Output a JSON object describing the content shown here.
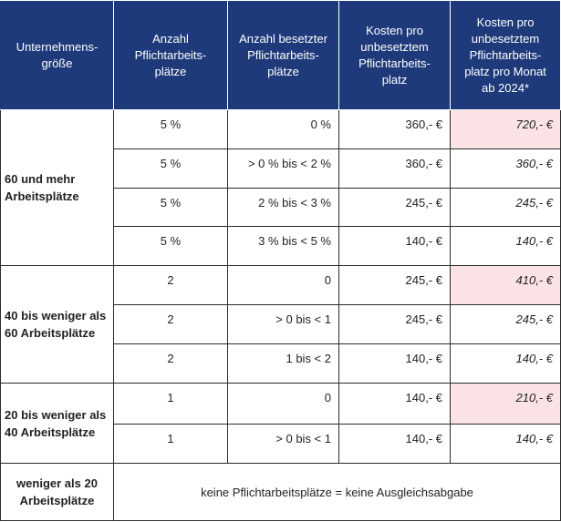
{
  "headers": {
    "size": [
      "Unternehmens-",
      "größe"
    ],
    "quota": [
      "Anzahl",
      "Pflichtarbeits-",
      "plätze"
    ],
    "filled": [
      "Anzahl besetzter",
      "Pflichtarbeits-",
      "plätze"
    ],
    "cost": [
      "Kosten pro",
      "unbesetztem",
      "Pflichtarbeits-",
      "platz"
    ],
    "cost_new": [
      "Kosten pro",
      "unbesetztem",
      "Pflichtarbeits-",
      "platz pro Monat",
      "ab 2024*"
    ]
  },
  "groups": [
    {
      "label": [
        "60 und mehr",
        "Arbeitsplätze"
      ],
      "rows": [
        {
          "quota": "5 %",
          "filled": "0 %",
          "cost": "360,- €",
          "cost_new": "720,- €",
          "highlight": true
        },
        {
          "quota": "5 %",
          "filled": "> 0 % bis < 2 %",
          "cost": "360,- €",
          "cost_new": "360,- €",
          "highlight": false
        },
        {
          "quota": "5 %",
          "filled": "2 % bis < 3 %",
          "cost": "245,- €",
          "cost_new": "245,- €",
          "highlight": false
        },
        {
          "quota": "5 %",
          "filled": "3 % bis < 5 %",
          "cost": "140,- €",
          "cost_new": "140,- €",
          "highlight": false
        }
      ]
    },
    {
      "label": [
        "40 bis weniger als",
        "60 Arbeitsplätze"
      ],
      "rows": [
        {
          "quota": "2",
          "filled": "0",
          "cost": "245,- €",
          "cost_new": "410,- €",
          "highlight": true
        },
        {
          "quota": "2",
          "filled": "> 0 bis < 1",
          "cost": "245,- €",
          "cost_new": "245,- €",
          "highlight": false
        },
        {
          "quota": "2",
          "filled": "1 bis < 2",
          "cost": "140,- €",
          "cost_new": "140,- €",
          "highlight": false
        }
      ]
    },
    {
      "label": [
        "20 bis weniger als",
        "40 Arbeitsplätze"
      ],
      "rows": [
        {
          "quota": "1",
          "filled": "0",
          "cost": "140,- €",
          "cost_new": "210,- €",
          "highlight": true
        },
        {
          "quota": "1",
          "filled": "> 0 bis < 1",
          "cost": "140,- €",
          "cost_new": "140,- €",
          "highlight": false
        }
      ]
    }
  ],
  "last_row": {
    "label": [
      "weniger als 20",
      "Arbeitsplätze"
    ],
    "text": "keine Pflichtarbeitsplätze = keine Ausgleichsabgabe"
  },
  "colors": {
    "header_bg": "#1f3a7a",
    "header_text": "#ffffff",
    "highlight_bg": "#fbe3e5"
  }
}
